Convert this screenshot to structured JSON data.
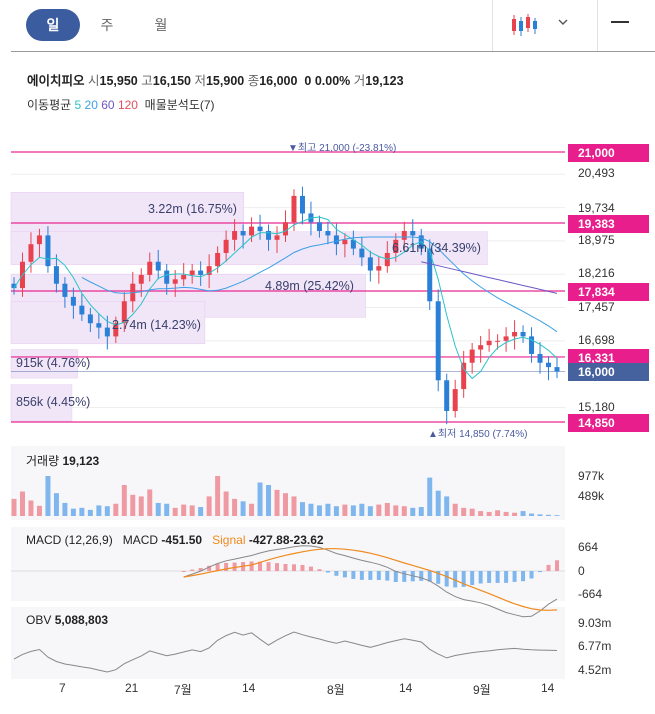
{
  "tabs": [
    {
      "label": "일",
      "active": true
    },
    {
      "label": "주",
      "active": false
    },
    {
      "label": "월",
      "active": false
    }
  ],
  "toolbar": {
    "chart_type_icon": "candlestick-icon",
    "dropdown_icon": "chevron-down-icon",
    "menu_icon": "hamburger-icon"
  },
  "info": {
    "name": "에이치피오",
    "open_label": "시",
    "open": "15,950",
    "high_label": "고",
    "high": "16,150",
    "low_label": "저",
    "low": "15,900",
    "close_label": "종",
    "close": "16,000",
    "change": "0",
    "change_pct": "0.00%",
    "volume_label": "거",
    "volume": "19,123"
  },
  "ma_legend": {
    "label": "이동평균",
    "periods": [
      {
        "text": "5",
        "color": "#2ac3c9"
      },
      {
        "text": "20",
        "color": "#3ba0e6"
      },
      {
        "text": "60",
        "color": "#6c58c4"
      },
      {
        "text": "120",
        "color": "#e0505f"
      }
    ],
    "vp_label": "매물분석도(7)"
  },
  "price_tags": [
    {
      "value": "21,000",
      "style": "pink"
    },
    {
      "value": "19,383",
      "style": "pink"
    },
    {
      "value": "17,834",
      "style": "pink"
    },
    {
      "value": "16,331",
      "style": "pink"
    },
    {
      "value": "16,000",
      "style": "blue"
    },
    {
      "value": "14,850",
      "style": "pink"
    }
  ],
  "y_labels": [
    "20,493",
    "19,734",
    "18,975",
    "18,216",
    "17,457",
    "16,698",
    "15,180"
  ],
  "vp_labels": [
    "3.22m (16.75%)",
    "6.61m (34.39%)",
    "4.89m (25.42%)",
    "2.74m (14.23%)",
    "915k (4.76%)",
    "856k (4.45%)"
  ],
  "high_marker": "▼최고 21,000 (-23.81%)",
  "low_marker": "▲최저 14,850 (7.74%)",
  "volume_panel": {
    "label": "거래량",
    "value": "19,123",
    "ticks": [
      "977k",
      "489k"
    ]
  },
  "macd_panel": {
    "label": "MACD (12,26,9)",
    "macd_label": "MACD",
    "macd_value": "-451.50",
    "signal_label": "Signal",
    "signal_value": "-427.88",
    "hist_value": "-23.62",
    "ticks": [
      "664",
      "0",
      "-664"
    ]
  },
  "obv_panel": {
    "label": "OBV",
    "value": "5,088,803",
    "ticks": [
      "9.03m",
      "6.77m",
      "4.52m"
    ]
  },
  "x_labels": [
    "7",
    "21",
    "7월",
    "14",
    "8월",
    "14",
    "9월",
    "14"
  ],
  "colors": {
    "up": "#e8424f",
    "down": "#2a7fd6",
    "pink": "#e81e8c",
    "accent": "#3c5ca0",
    "signal": "#f08a1c"
  },
  "chart_data": {
    "type": "candlestick",
    "price_axis": {
      "min": 14850,
      "max": 21000,
      "ticks": [
        20493,
        19734,
        18975,
        18216,
        17457,
        16698,
        15180
      ]
    },
    "levels": [
      21000,
      19383,
      17834,
      16331,
      16000,
      14850
    ],
    "volume_profile": [
      {
        "volume": "3.22m",
        "pct": 16.75
      },
      {
        "volume": "6.61m",
        "pct": 34.39
      },
      {
        "volume": "4.89m",
        "pct": 25.42
      },
      {
        "volume": "2.74m",
        "pct": 14.23
      },
      {
        "volume": "915k",
        "pct": 4.76
      },
      {
        "volume": "856k",
        "pct": 4.45
      }
    ],
    "close": [
      17900,
      18500,
      18900,
      19100,
      18400,
      18000,
      17700,
      17500,
      17300,
      17100,
      17000,
      16800,
      17100,
      17600,
      18000,
      18200,
      18500,
      18300,
      18000,
      18100,
      18200,
      18300,
      18200,
      18400,
      18700,
      19000,
      19200,
      19100,
      19300,
      19200,
      19000,
      19100,
      19400,
      20000,
      19600,
      19400,
      19200,
      19100,
      18900,
      19000,
      18800,
      18600,
      18300,
      18400,
      18700,
      19000,
      19200,
      19100,
      18800,
      17600,
      15800,
      15100,
      15600,
      16200,
      16500,
      16600,
      16700,
      16700,
      16800,
      16900,
      16800,
      16400,
      16200,
      16100,
      16000
    ],
    "volume": [
      420,
      600,
      380,
      250,
      980,
      560,
      320,
      180,
      200,
      150,
      260,
      240,
      300,
      760,
      520,
      480,
      650,
      320,
      300,
      200,
      280,
      260,
      220,
      480,
      980,
      600,
      420,
      360,
      300,
      820,
      760,
      640,
      560,
      480,
      340,
      300,
      260,
      300,
      240,
      280,
      260,
      300,
      240,
      280,
      320,
      260,
      240,
      200,
      220,
      940,
      620,
      480,
      300,
      200,
      180,
      120,
      100,
      140,
      100,
      80,
      120,
      60,
      40,
      30,
      20
    ]
  }
}
